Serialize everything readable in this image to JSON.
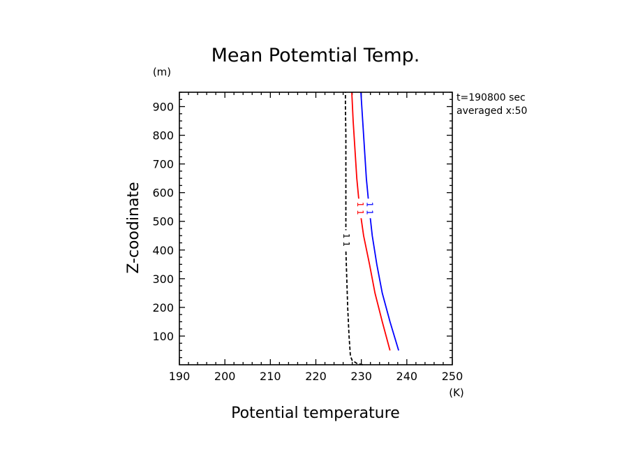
{
  "chart_data": {
    "type": "line",
    "title": "Mean Potemtial Temp.",
    "xlabel": "Potential temperature",
    "ylabel": "Z-coodinate",
    "x_unit": "(K)",
    "y_unit": "(m)",
    "xlim": [
      190,
      250
    ],
    "ylim": [
      0,
      950
    ],
    "x_ticks": [
      190,
      200,
      210,
      220,
      230,
      240,
      250
    ],
    "y_ticks": [
      100,
      200,
      300,
      400,
      500,
      600,
      700,
      800,
      900
    ],
    "grid": false,
    "annotations": [
      "t=190800 sec",
      "averaged  x:50"
    ],
    "series": [
      {
        "color": "#ff0000",
        "style": "solid",
        "label": "1",
        "label_at_y": 545,
        "points": [
          [
            236.3,
            50
          ],
          [
            234.6,
            150
          ],
          [
            233.0,
            250
          ],
          [
            231.8,
            350
          ],
          [
            230.5,
            450
          ],
          [
            229.6,
            550
          ],
          [
            229.0,
            650
          ],
          [
            228.6,
            750
          ],
          [
            228.2,
            850
          ],
          [
            227.9,
            950
          ]
        ]
      },
      {
        "color": "#0000ff",
        "style": "solid",
        "label": "1",
        "label_at_y": 545,
        "points": [
          [
            238.2,
            50
          ],
          [
            236.3,
            150
          ],
          [
            234.6,
            250
          ],
          [
            233.4,
            350
          ],
          [
            232.4,
            450
          ],
          [
            231.7,
            550
          ],
          [
            231.1,
            650
          ],
          [
            230.7,
            750
          ],
          [
            230.3,
            850
          ],
          [
            229.9,
            950
          ]
        ]
      },
      {
        "color": "#000000",
        "style": "dashed",
        "label": "1",
        "label_at_y": 435,
        "points": [
          [
            230.3,
            0
          ],
          [
            229.0,
            5
          ],
          [
            228.0,
            15
          ],
          [
            227.6,
            30
          ],
          [
            227.3,
            100
          ],
          [
            227.0,
            200
          ],
          [
            226.8,
            300
          ],
          [
            226.6,
            400
          ],
          [
            226.6,
            500
          ],
          [
            226.6,
            600
          ],
          [
            226.6,
            700
          ],
          [
            226.6,
            800
          ],
          [
            226.5,
            900
          ],
          [
            226.5,
            950
          ]
        ]
      }
    ]
  }
}
